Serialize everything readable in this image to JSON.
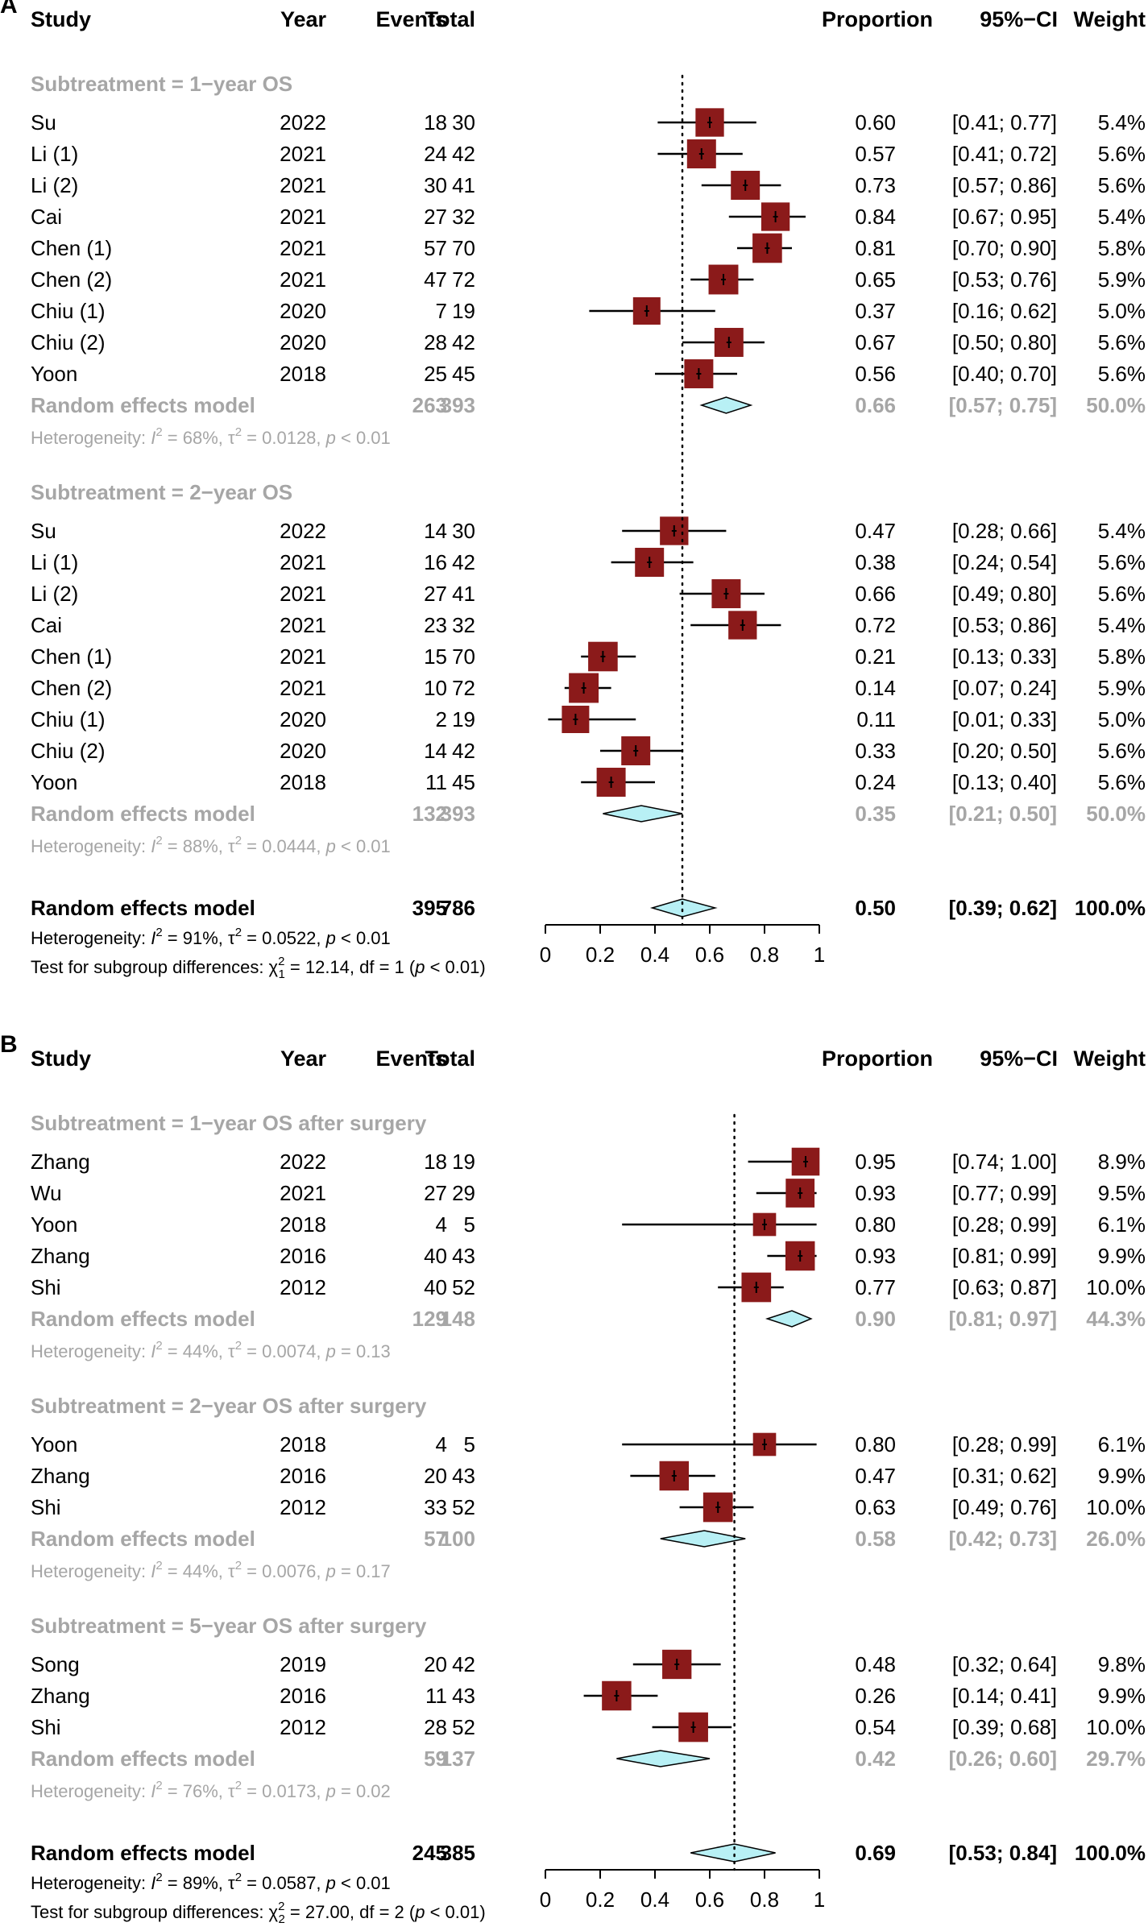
{
  "colors": {
    "box": "#8b1a1a",
    "diamond": "#b8f0f5",
    "grey": "#a6a6a6"
  },
  "chart_data": [
    {
      "type": "forest",
      "panel": "A",
      "xlim": [
        0,
        1
      ],
      "ticks": [
        "0",
        "0.2",
        "0.4",
        "0.6",
        "0.8",
        "1"
      ],
      "ref_line": 0.5,
      "headers": {
        "study": "Study",
        "year": "Year",
        "events": "Events",
        "total": "Total",
        "prop": "Proportion",
        "ci": "95%−CI",
        "weight": "Weight"
      },
      "groups": [
        {
          "title": "Subtreatment = 1−year OS",
          "studies": [
            {
              "study": "Su",
              "year": "2022",
              "events": "18",
              "total": "30",
              "est": 0.6,
              "lo": 0.41,
              "hi": 0.77,
              "prop": "0.60",
              "ci": "[0.41; 0.77]",
              "weight": "5.4%",
              "w": 5.4
            },
            {
              "study": "Li (1)",
              "year": "2021",
              "events": "24",
              "total": "42",
              "est": 0.57,
              "lo": 0.41,
              "hi": 0.72,
              "prop": "0.57",
              "ci": "[0.41; 0.72]",
              "weight": "5.6%",
              "w": 5.6
            },
            {
              "study": "Li (2)",
              "year": "2021",
              "events": "30",
              "total": "41",
              "est": 0.73,
              "lo": 0.57,
              "hi": 0.86,
              "prop": "0.73",
              "ci": "[0.57; 0.86]",
              "weight": "5.6%",
              "w": 5.6
            },
            {
              "study": "Cai",
              "year": "2021",
              "events": "27",
              "total": "32",
              "est": 0.84,
              "lo": 0.67,
              "hi": 0.95,
              "prop": "0.84",
              "ci": "[0.67; 0.95]",
              "weight": "5.4%",
              "w": 5.4
            },
            {
              "study": "Chen (1)",
              "year": "2021",
              "events": "57",
              "total": "70",
              "est": 0.81,
              "lo": 0.7,
              "hi": 0.9,
              "prop": "0.81",
              "ci": "[0.70; 0.90]",
              "weight": "5.8%",
              "w": 5.8
            },
            {
              "study": "Chen (2)",
              "year": "2021",
              "events": "47",
              "total": "72",
              "est": 0.65,
              "lo": 0.53,
              "hi": 0.76,
              "prop": "0.65",
              "ci": "[0.53; 0.76]",
              "weight": "5.9%",
              "w": 5.9
            },
            {
              "study": "Chiu (1)",
              "year": "2020",
              "events": "7",
              "total": "19",
              "est": 0.37,
              "lo": 0.16,
              "hi": 0.62,
              "prop": "0.37",
              "ci": "[0.16; 0.62]",
              "weight": "5.0%",
              "w": 5.0
            },
            {
              "study": "Chiu (2)",
              "year": "2020",
              "events": "28",
              "total": "42",
              "est": 0.67,
              "lo": 0.5,
              "hi": 0.8,
              "prop": "0.67",
              "ci": "[0.50; 0.80]",
              "weight": "5.6%",
              "w": 5.6
            },
            {
              "study": "Yoon",
              "year": "2018",
              "events": "25",
              "total": "45",
              "est": 0.56,
              "lo": 0.4,
              "hi": 0.7,
              "prop": "0.56",
              "ci": "[0.40; 0.70]",
              "weight": "5.6%",
              "w": 5.6
            }
          ],
          "pooled": {
            "label": "Random effects model",
            "events": "263",
            "total": "393",
            "est": 0.66,
            "lo": 0.57,
            "hi": 0.75,
            "prop": "0.66",
            "ci": "[0.57; 0.75]",
            "weight": "50.0%"
          },
          "het": {
            "pre": "Heterogeneity: ",
            "i2": "68%",
            "tau2": "0.0128",
            "p": "< 0.01"
          }
        },
        {
          "title": "Subtreatment = 2−year OS",
          "studies": [
            {
              "study": "Su",
              "year": "2022",
              "events": "14",
              "total": "30",
              "est": 0.47,
              "lo": 0.28,
              "hi": 0.66,
              "prop": "0.47",
              "ci": "[0.28; 0.66]",
              "weight": "5.4%",
              "w": 5.4
            },
            {
              "study": "Li (1)",
              "year": "2021",
              "events": "16",
              "total": "42",
              "est": 0.38,
              "lo": 0.24,
              "hi": 0.54,
              "prop": "0.38",
              "ci": "[0.24; 0.54]",
              "weight": "5.6%",
              "w": 5.6
            },
            {
              "study": "Li (2)",
              "year": "2021",
              "events": "27",
              "total": "41",
              "est": 0.66,
              "lo": 0.49,
              "hi": 0.8,
              "prop": "0.66",
              "ci": "[0.49; 0.80]",
              "weight": "5.6%",
              "w": 5.6
            },
            {
              "study": "Cai",
              "year": "2021",
              "events": "23",
              "total": "32",
              "est": 0.72,
              "lo": 0.53,
              "hi": 0.86,
              "prop": "0.72",
              "ci": "[0.53; 0.86]",
              "weight": "5.4%",
              "w": 5.4
            },
            {
              "study": "Chen (1)",
              "year": "2021",
              "events": "15",
              "total": "70",
              "est": 0.21,
              "lo": 0.13,
              "hi": 0.33,
              "prop": "0.21",
              "ci": "[0.13; 0.33]",
              "weight": "5.8%",
              "w": 5.8
            },
            {
              "study": "Chen (2)",
              "year": "2021",
              "events": "10",
              "total": "72",
              "est": 0.14,
              "lo": 0.07,
              "hi": 0.24,
              "prop": "0.14",
              "ci": "[0.07; 0.24]",
              "weight": "5.9%",
              "w": 5.9
            },
            {
              "study": "Chiu (1)",
              "year": "2020",
              "events": "2",
              "total": "19",
              "est": 0.11,
              "lo": 0.01,
              "hi": 0.33,
              "prop": "0.11",
              "ci": "[0.01; 0.33]",
              "weight": "5.0%",
              "w": 5.0
            },
            {
              "study": "Chiu (2)",
              "year": "2020",
              "events": "14",
              "total": "42",
              "est": 0.33,
              "lo": 0.2,
              "hi": 0.5,
              "prop": "0.33",
              "ci": "[0.20; 0.50]",
              "weight": "5.6%",
              "w": 5.6
            },
            {
              "study": "Yoon",
              "year": "2018",
              "events": "11",
              "total": "45",
              "est": 0.24,
              "lo": 0.13,
              "hi": 0.4,
              "prop": "0.24",
              "ci": "[0.13; 0.40]",
              "weight": "5.6%",
              "w": 5.6
            }
          ],
          "pooled": {
            "label": "Random effects model",
            "events": "132",
            "total": "393",
            "est": 0.35,
            "lo": 0.21,
            "hi": 0.5,
            "prop": "0.35",
            "ci": "[0.21; 0.50]",
            "weight": "50.0%"
          },
          "het": {
            "pre": "Heterogeneity: ",
            "i2": "88%",
            "tau2": "0.0444",
            "p": "< 0.01"
          }
        }
      ],
      "overall": {
        "label": "Random effects model",
        "events": "395",
        "total": "786",
        "est": 0.5,
        "lo": 0.39,
        "hi": 0.62,
        "prop": "0.50",
        "ci": "[0.39; 0.62]",
        "weight": "100.0%",
        "het": {
          "pre": "Heterogeneity: ",
          "i2": "91%",
          "tau2": "0.0522",
          "p": "< 0.01"
        },
        "test": {
          "pre": "Test for subgroup differences: ",
          "sub": "1",
          "val": "12.14",
          "df": "df = 1",
          "p": "(p < 0.01)"
        }
      }
    },
    {
      "type": "forest",
      "panel": "B",
      "xlim": [
        0,
        1
      ],
      "ticks": [
        "0",
        "0.2",
        "0.4",
        "0.6",
        "0.8",
        "1"
      ],
      "ref_line": 0.69,
      "headers": {
        "study": "Study",
        "year": "Year",
        "events": "Events",
        "total": "Total",
        "prop": "Proportion",
        "ci": "95%−CI",
        "weight": "Weight"
      },
      "groups": [
        {
          "title": "Subtreatment = 1−year OS after surgery",
          "studies": [
            {
              "study": "Zhang",
              "year": "2022",
              "events": "18",
              "total": "19",
              "est": 0.95,
              "lo": 0.74,
              "hi": 1.0,
              "prop": "0.95",
              "ci": "[0.74; 1.00]",
              "weight": "8.9%",
              "w": 8.9
            },
            {
              "study": "Wu",
              "year": "2021",
              "events": "27",
              "total": "29",
              "est": 0.93,
              "lo": 0.77,
              "hi": 0.99,
              "prop": "0.93",
              "ci": "[0.77; 0.99]",
              "weight": "9.5%",
              "w": 9.5
            },
            {
              "study": "Yoon",
              "year": "2018",
              "events": "4",
              "total": "5",
              "est": 0.8,
              "lo": 0.28,
              "hi": 0.99,
              "prop": "0.80",
              "ci": "[0.28; 0.99]",
              "weight": "6.1%",
              "w": 6.1
            },
            {
              "study": "Zhang",
              "year": "2016",
              "events": "40",
              "total": "43",
              "est": 0.93,
              "lo": 0.81,
              "hi": 0.99,
              "prop": "0.93",
              "ci": "[0.81; 0.99]",
              "weight": "9.9%",
              "w": 9.9
            },
            {
              "study": "Shi",
              "year": "2012",
              "events": "40",
              "total": "52",
              "est": 0.77,
              "lo": 0.63,
              "hi": 0.87,
              "prop": "0.77",
              "ci": "[0.63; 0.87]",
              "weight": "10.0%",
              "w": 10.0
            }
          ],
          "pooled": {
            "label": "Random effects model",
            "events": "129",
            "total": "148",
            "est": 0.9,
            "lo": 0.81,
            "hi": 0.97,
            "prop": "0.90",
            "ci": "[0.81; 0.97]",
            "weight": "44.3%"
          },
          "het": {
            "pre": "Heterogeneity: ",
            "i2": "44%",
            "tau2": "0.0074",
            "p": "= 0.13"
          }
        },
        {
          "title": "Subtreatment = 2−year OS after surgery",
          "studies": [
            {
              "study": "Yoon",
              "year": "2018",
              "events": "4",
              "total": "5",
              "est": 0.8,
              "lo": 0.28,
              "hi": 0.99,
              "prop": "0.80",
              "ci": "[0.28; 0.99]",
              "weight": "6.1%",
              "w": 6.1
            },
            {
              "study": "Zhang",
              "year": "2016",
              "events": "20",
              "total": "43",
              "est": 0.47,
              "lo": 0.31,
              "hi": 0.62,
              "prop": "0.47",
              "ci": "[0.31; 0.62]",
              "weight": "9.9%",
              "w": 9.9
            },
            {
              "study": "Shi",
              "year": "2012",
              "events": "33",
              "total": "52",
              "est": 0.63,
              "lo": 0.49,
              "hi": 0.76,
              "prop": "0.63",
              "ci": "[0.49; 0.76]",
              "weight": "10.0%",
              "w": 10.0
            }
          ],
          "pooled": {
            "label": "Random effects model",
            "events": "57",
            "total": "100",
            "est": 0.58,
            "lo": 0.42,
            "hi": 0.73,
            "prop": "0.58",
            "ci": "[0.42; 0.73]",
            "weight": "26.0%"
          },
          "het": {
            "pre": "Heterogeneity: ",
            "i2": "44%",
            "tau2": "0.0076",
            "p": "= 0.17"
          }
        },
        {
          "title": "Subtreatment = 5−year OS after surgery",
          "studies": [
            {
              "study": "Song",
              "year": "2019",
              "events": "20",
              "total": "42",
              "est": 0.48,
              "lo": 0.32,
              "hi": 0.64,
              "prop": "0.48",
              "ci": "[0.32; 0.64]",
              "weight": "9.8%",
              "w": 9.8
            },
            {
              "study": "Zhang",
              "year": "2016",
              "events": "11",
              "total": "43",
              "est": 0.26,
              "lo": 0.14,
              "hi": 0.41,
              "prop": "0.26",
              "ci": "[0.14; 0.41]",
              "weight": "9.9%",
              "w": 9.9
            },
            {
              "study": "Shi",
              "year": "2012",
              "events": "28",
              "total": "52",
              "est": 0.54,
              "lo": 0.39,
              "hi": 0.68,
              "prop": "0.54",
              "ci": "[0.39; 0.68]",
              "weight": "10.0%",
              "w": 10.0
            }
          ],
          "pooled": {
            "label": "Random effects model",
            "events": "59",
            "total": "137",
            "est": 0.42,
            "lo": 0.26,
            "hi": 0.6,
            "prop": "0.42",
            "ci": "[0.26; 0.60]",
            "weight": "29.7%"
          },
          "het": {
            "pre": "Heterogeneity: ",
            "i2": "76%",
            "tau2": "0.0173",
            "p": "= 0.02"
          }
        }
      ],
      "overall": {
        "label": "Random effects model",
        "events": "245",
        "total": "385",
        "est": 0.69,
        "lo": 0.53,
        "hi": 0.84,
        "prop": "0.69",
        "ci": "[0.53; 0.84]",
        "weight": "100.0%",
        "het": {
          "pre": "Heterogeneity: ",
          "i2": "89%",
          "tau2": "0.0587",
          "p": "< 0.01"
        },
        "test": {
          "pre": "Test for subgroup differences: ",
          "sub": "2",
          "val": "27.00",
          "df": "df = 2",
          "p": "(p < 0.01)"
        }
      }
    }
  ]
}
